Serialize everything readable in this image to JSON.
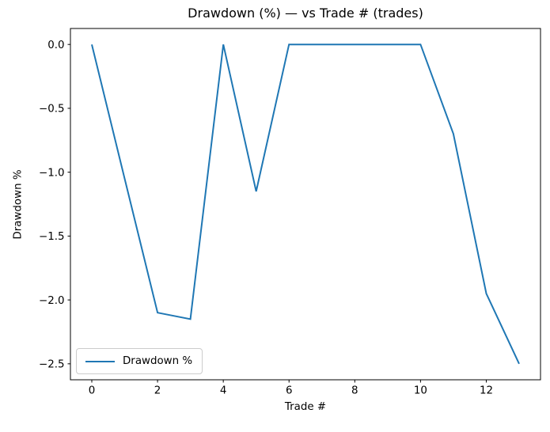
{
  "title": "Drawdown (%) — vs Trade # (trades)",
  "colors": {
    "line": "#1f77b4",
    "spine": "#000000",
    "text": "#000000",
    "legend_border": "#cccccc",
    "background": "#ffffff"
  },
  "legend": {
    "label": "Drawdown %",
    "position": "lower left"
  },
  "chart_data": {
    "type": "line",
    "title": "Drawdown (%) — vs Trade # (trades)",
    "xlabel": "Trade #",
    "ylabel": "Drawdown %",
    "x": [
      0,
      1,
      2,
      3,
      4,
      5,
      6,
      7,
      8,
      9,
      10,
      11,
      12,
      13
    ],
    "series": [
      {
        "name": "Drawdown %",
        "color": "#1f77b4",
        "values": [
          0.0,
          -1.05,
          -2.1,
          -2.15,
          0.0,
          -1.15,
          0.0,
          0.0,
          0.0,
          0.0,
          0.0,
          -0.7,
          -1.95,
          -2.5
        ]
      }
    ],
    "xlim": [
      -0.65,
      13.65
    ],
    "ylim": [
      -2.625,
      0.125
    ],
    "xticks": {
      "values": [
        0,
        2,
        4,
        6,
        8,
        10,
        12
      ],
      "labels": [
        "0",
        "2",
        "4",
        "6",
        "8",
        "10",
        "12"
      ]
    },
    "yticks": {
      "values": [
        0.0,
        -0.5,
        -1.0,
        -1.5,
        -2.0,
        -2.5
      ],
      "labels": [
        "0.0",
        "−0.5",
        "−1.0",
        "−1.5",
        "−2.0",
        "−2.5"
      ]
    },
    "grid": false,
    "legend_position": "lower left"
  }
}
